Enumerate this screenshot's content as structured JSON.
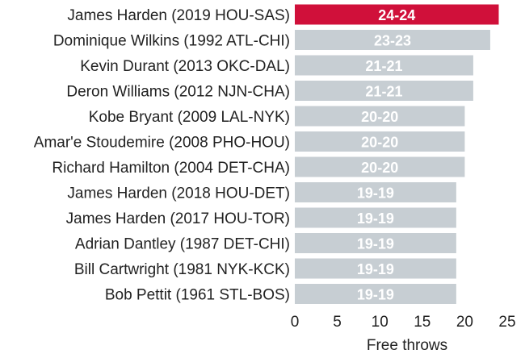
{
  "chart_data": {
    "type": "bar",
    "orientation": "horizontal",
    "title": "",
    "xlabel": "Free throws",
    "ylabel": "",
    "xlim": [
      0,
      25
    ],
    "xticks": [
      0,
      5,
      10,
      15,
      20,
      25
    ],
    "grid": false,
    "legend": "none",
    "categories": [
      "James Harden (2019 HOU-SAS)",
      "Dominique Wilkins (1992 ATL-CHI)",
      "Kevin Durant (2013 OKC-DAL)",
      "Deron Williams (2012 NJN-CHA)",
      "Kobe Bryant (2009 LAL-NYK)",
      "Amar'e Stoudemire (2008 PHO-HOU)",
      "Richard Hamilton (2004 DET-CHA)",
      "James Harden (2018 HOU-DET)",
      "James Harden (2017 HOU-TOR)",
      "Adrian Dantley (1987 DET-CHI)",
      "Bill Cartwright (1981 NYK-KCK)",
      "Bob Pettit (1961 STL-BOS)"
    ],
    "values": [
      24,
      23,
      21,
      21,
      20,
      20,
      20,
      19,
      19,
      19,
      19,
      19
    ],
    "data_labels": [
      "24-24",
      "23-23",
      "21-21",
      "21-21",
      "20-20",
      "20-20",
      "20-20",
      "19-19",
      "19-19",
      "19-19",
      "19-19",
      "19-19"
    ],
    "highlight_index": 0,
    "colors": {
      "highlight": "#d0103a",
      "default": "#c7ced3",
      "label": "#ffffff",
      "text": "#222222"
    }
  }
}
